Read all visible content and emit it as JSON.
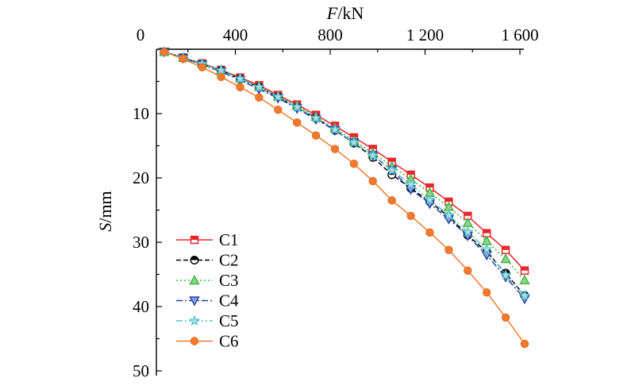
{
  "chart_data": {
    "type": "line",
    "title": "",
    "xlabel_italic": "F",
    "xlabel_unit": "/kN",
    "ylabel_italic": "S",
    "ylabel_unit": "/mm",
    "x_axis_position": "top",
    "y_inverted": true,
    "xlim": [
      0,
      1600
    ],
    "ylim": [
      0,
      50
    ],
    "x_ticks": [
      0,
      400,
      800,
      1200,
      1600
    ],
    "x_tick_labels": [
      "0",
      "400",
      "800",
      "1 200",
      "1 600"
    ],
    "y_ticks": [
      10,
      20,
      30,
      40,
      50
    ],
    "y_tick_labels": [
      "10",
      "20",
      "30",
      "40",
      "50"
    ],
    "grid": false,
    "legend_position": "bottom-left",
    "x": [
      100,
      180,
      260,
      340,
      420,
      500,
      580,
      660,
      740,
      820,
      900,
      980,
      1060,
      1140,
      1220,
      1300,
      1380,
      1460,
      1540,
      1620
    ],
    "series": [
      {
        "name": "C1",
        "color": "#e8262a",
        "line": "solid",
        "marker": "square",
        "values": [
          0.4,
          1.3,
          2.2,
          3.2,
          4.4,
          5.6,
          7.1,
          8.6,
          10.2,
          11.9,
          13.7,
          15.5,
          17.5,
          19.5,
          21.5,
          23.7,
          25.9,
          28.6,
          31.2,
          34.4
        ]
      },
      {
        "name": "C2",
        "color": "#000000",
        "line": "dashed",
        "marker": "circle",
        "values": [
          0.4,
          1.3,
          2.3,
          3.3,
          4.6,
          5.9,
          7.4,
          9.0,
          10.7,
          12.6,
          14.6,
          16.8,
          19.5,
          21.6,
          23.7,
          26.0,
          28.9,
          31.5,
          34.8,
          38.3
        ]
      },
      {
        "name": "C3",
        "color": "#3db33d",
        "line": "dotted",
        "marker": "triangle-up",
        "values": [
          0.4,
          1.3,
          2.2,
          3.2,
          4.5,
          5.8,
          7.3,
          8.8,
          10.5,
          12.3,
          14.2,
          16.1,
          18.2,
          20.2,
          22.3,
          24.5,
          27.0,
          29.8,
          32.6,
          35.9
        ]
      },
      {
        "name": "C4",
        "color": "#1f3fa8",
        "line": "dashdot",
        "marker": "triangle-down",
        "values": [
          0.4,
          1.4,
          2.4,
          3.5,
          4.8,
          6.2,
          7.6,
          9.2,
          10.9,
          12.6,
          14.5,
          16.5,
          18.8,
          21.8,
          24.0,
          26.4,
          29.0,
          32.0,
          35.4,
          38.8
        ]
      },
      {
        "name": "C5",
        "color": "#5bc0c8",
        "line": "dashdotdot",
        "marker": "star",
        "values": [
          0.4,
          1.3,
          2.3,
          3.3,
          4.6,
          5.9,
          7.4,
          9.0,
          10.7,
          12.5,
          14.5,
          16.5,
          18.8,
          21.0,
          23.4,
          25.8,
          28.4,
          31.1,
          35.1,
          38.3
        ]
      },
      {
        "name": "C6",
        "color": "#f27a2c",
        "line": "solid",
        "marker": "filled-circle",
        "values": [
          0.4,
          1.5,
          2.8,
          4.3,
          5.9,
          7.5,
          9.4,
          11.4,
          13.4,
          15.5,
          17.8,
          20.5,
          23.5,
          25.9,
          28.5,
          31.2,
          34.4,
          37.8,
          41.7,
          45.8
        ]
      }
    ]
  }
}
